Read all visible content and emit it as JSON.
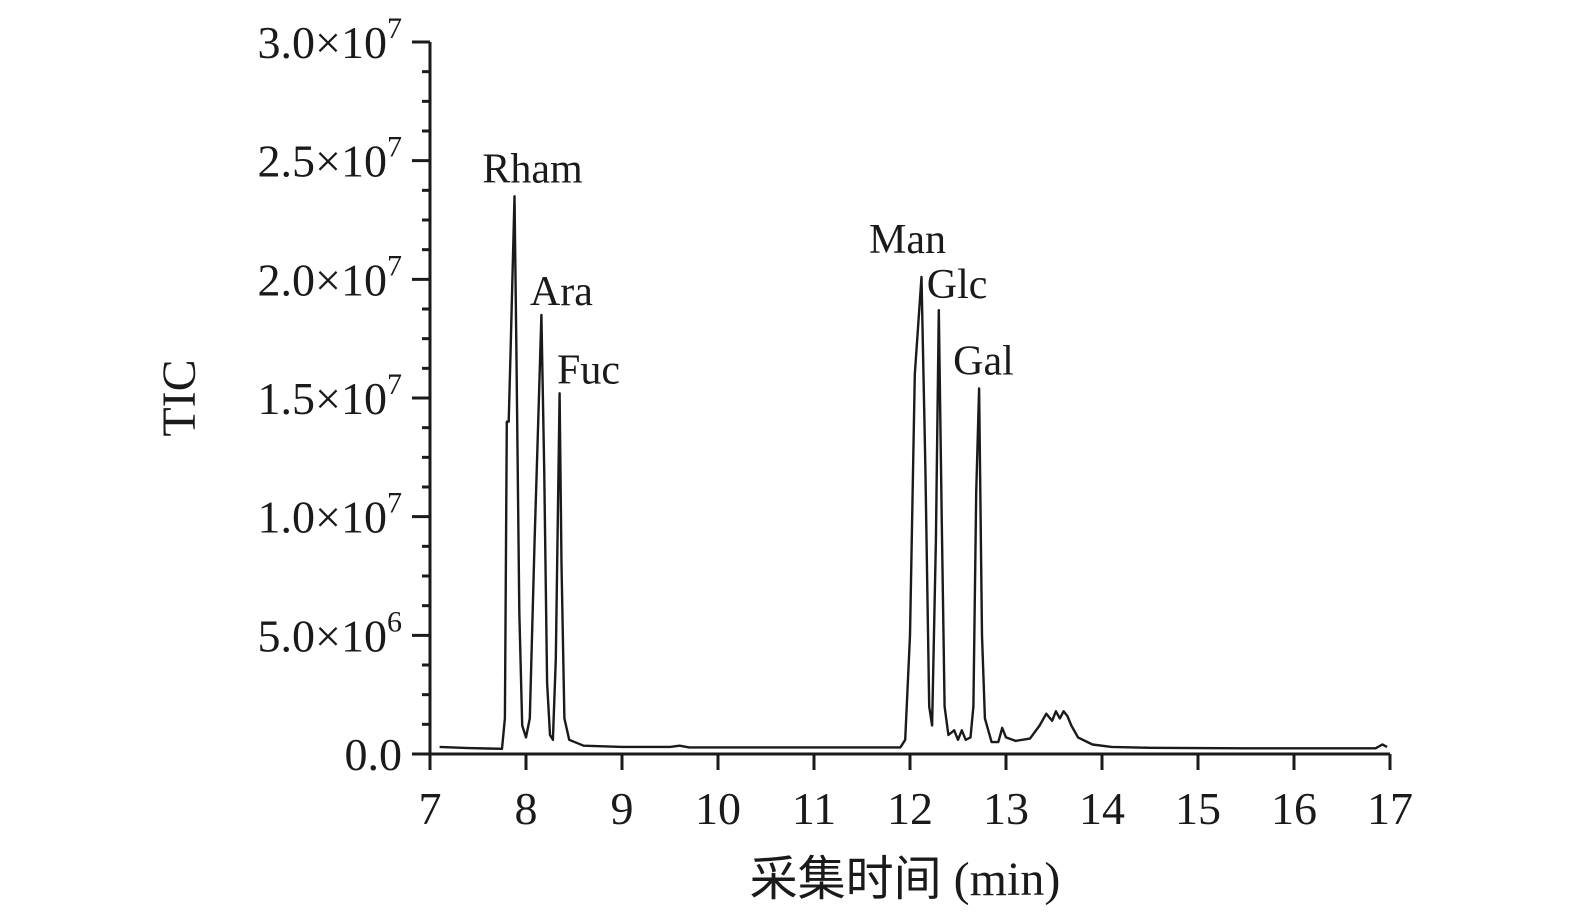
{
  "chart_data": {
    "type": "line",
    "title": "",
    "xlabel": "采集时间 (min)",
    "ylabel": "TIC",
    "xlim": [
      7,
      17
    ],
    "ylim": [
      0,
      30000000
    ],
    "grid": false,
    "legend": "none",
    "x_ticks": [
      {
        "value": 7,
        "label": "7"
      },
      {
        "value": 8,
        "label": "8"
      },
      {
        "value": 9,
        "label": "9"
      },
      {
        "value": 10,
        "label": "10"
      },
      {
        "value": 11,
        "label": "11"
      },
      {
        "value": 12,
        "label": "12"
      },
      {
        "value": 13,
        "label": "13"
      },
      {
        "value": 14,
        "label": "14"
      },
      {
        "value": 15,
        "label": "15"
      },
      {
        "value": 16,
        "label": "16"
      },
      {
        "value": 17,
        "label": "17"
      }
    ],
    "y_ticks": [
      {
        "value": 0,
        "mantissa": "0.0",
        "exponent": ""
      },
      {
        "value": 5000000,
        "mantissa": "5.0×10",
        "exponent": "6"
      },
      {
        "value": 10000000,
        "mantissa": "1.0×10",
        "exponent": "7"
      },
      {
        "value": 15000000,
        "mantissa": "1.5×10",
        "exponent": "7"
      },
      {
        "value": 20000000,
        "mantissa": "2.0×10",
        "exponent": "7"
      },
      {
        "value": 25000000,
        "mantissa": "2.5×10",
        "exponent": "7"
      },
      {
        "value": 30000000,
        "mantissa": "3.0×10",
        "exponent": "7"
      }
    ],
    "peaks": [
      {
        "name": "Rham",
        "x": 7.88,
        "y": 23500000
      },
      {
        "name": "Ara",
        "x": 8.16,
        "y": 18500000
      },
      {
        "name": "Fuc",
        "x": 8.36,
        "y": 15200000
      },
      {
        "name": "Man",
        "x": 12.12,
        "y": 20100000
      },
      {
        "name": "Glc",
        "x": 12.3,
        "y": 18700000
      },
      {
        "name": "Gal",
        "x": 12.72,
        "y": 15400000
      }
    ],
    "series": [
      {
        "values": [
          [
            7.1,
            300000
          ],
          [
            7.4,
            250000
          ],
          [
            7.6,
            230000
          ],
          [
            7.75,
            220000
          ],
          [
            7.78,
            1500000
          ],
          [
            7.8,
            14000000
          ],
          [
            7.82,
            14000000
          ],
          [
            7.84,
            17000000
          ],
          [
            7.88,
            23500000
          ],
          [
            7.9,
            17000000
          ],
          [
            7.93,
            6000000
          ],
          [
            7.96,
            1200000
          ],
          [
            8.0,
            700000
          ],
          [
            8.04,
            1500000
          ],
          [
            8.09,
            9000000
          ],
          [
            8.12,
            13000000
          ],
          [
            8.16,
            18500000
          ],
          [
            8.19,
            12000000
          ],
          [
            8.22,
            3000000
          ],
          [
            8.25,
            800000
          ],
          [
            8.28,
            600000
          ],
          [
            8.31,
            4000000
          ],
          [
            8.35,
            15200000
          ],
          [
            8.37,
            8000000
          ],
          [
            8.4,
            1500000
          ],
          [
            8.45,
            600000
          ],
          [
            8.6,
            350000
          ],
          [
            9.0,
            300000
          ],
          [
            9.5,
            300000
          ],
          [
            9.6,
            350000
          ],
          [
            9.7,
            280000
          ],
          [
            10.5,
            280000
          ],
          [
            11.0,
            280000
          ],
          [
            11.5,
            280000
          ],
          [
            11.9,
            280000
          ],
          [
            11.95,
            600000
          ],
          [
            12.0,
            5000000
          ],
          [
            12.05,
            16000000
          ],
          [
            12.12,
            20100000
          ],
          [
            12.16,
            12000000
          ],
          [
            12.2,
            2000000
          ],
          [
            12.23,
            1200000
          ],
          [
            12.27,
            9000000
          ],
          [
            12.3,
            18700000
          ],
          [
            12.33,
            10000000
          ],
          [
            12.36,
            2000000
          ],
          [
            12.4,
            800000
          ],
          [
            12.46,
            1000000
          ],
          [
            12.5,
            600000
          ],
          [
            12.54,
            1000000
          ],
          [
            12.58,
            600000
          ],
          [
            12.63,
            700000
          ],
          [
            12.66,
            2000000
          ],
          [
            12.69,
            11000000
          ],
          [
            12.72,
            15400000
          ],
          [
            12.75,
            5000000
          ],
          [
            12.78,
            1500000
          ],
          [
            12.85,
            500000
          ],
          [
            12.92,
            500000
          ],
          [
            12.96,
            1100000
          ],
          [
            13.0,
            700000
          ],
          [
            13.1,
            550000
          ],
          [
            13.25,
            650000
          ],
          [
            13.35,
            1200000
          ],
          [
            13.42,
            1700000
          ],
          [
            13.48,
            1400000
          ],
          [
            13.52,
            1800000
          ],
          [
            13.56,
            1500000
          ],
          [
            13.6,
            1800000
          ],
          [
            13.64,
            1600000
          ],
          [
            13.68,
            1200000
          ],
          [
            13.75,
            700000
          ],
          [
            13.9,
            400000
          ],
          [
            14.1,
            300000
          ],
          [
            14.5,
            260000
          ],
          [
            15.0,
            250000
          ],
          [
            15.5,
            240000
          ],
          [
            16.0,
            240000
          ],
          [
            16.5,
            240000
          ],
          [
            16.85,
            240000
          ],
          [
            16.92,
            400000
          ],
          [
            16.97,
            300000
          ]
        ]
      }
    ]
  }
}
